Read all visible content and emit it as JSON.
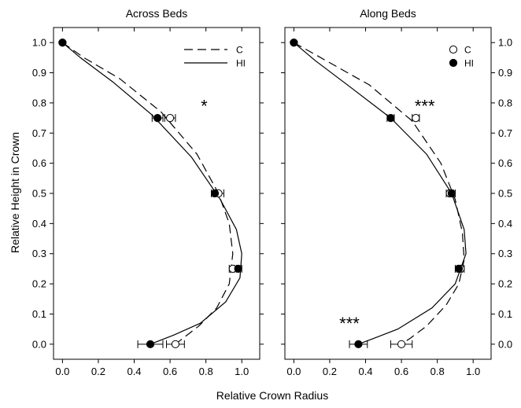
{
  "figure": {
    "ylabel": "Relative Height in Crown",
    "xlabel": "Relative Crown Radius"
  },
  "chart_data": [
    {
      "type": "line",
      "title": "Across Beds",
      "xlabel": "Relative Crown Radius",
      "ylabel": "Relative Height in Crown",
      "xlim": [
        -0.05,
        1.1
      ],
      "ylim": [
        -0.05,
        1.05
      ],
      "x_ticks": [
        "0.0",
        "0.2",
        "0.4",
        "0.6",
        "0.8",
        "1.0"
      ],
      "y_ticks": [
        "0.0",
        "0.1",
        "0.2",
        "0.3",
        "0.4",
        "0.5",
        "0.6",
        "0.7",
        "0.8",
        "0.9",
        "1.0"
      ],
      "legend": {
        "position": "top-right",
        "style": "lines",
        "entries": [
          "C",
          "HI"
        ]
      },
      "series": [
        {
          "name": "C",
          "marker": "open-circle",
          "line": "dashed",
          "points": [
            {
              "x": 0.0,
              "y": 1.0,
              "err": 0.0
            },
            {
              "x": 0.6,
              "y": 0.75,
              "err": 0.03
            },
            {
              "x": 0.87,
              "y": 0.5,
              "err": 0.03
            },
            {
              "x": 0.95,
              "y": 0.25,
              "err": 0.02
            },
            {
              "x": 0.63,
              "y": 0.0,
              "err": 0.05
            }
          ],
          "curve": [
            {
              "x": 0.0,
              "y": 1.0
            },
            {
              "x": 0.12,
              "y": 0.95
            },
            {
              "x": 0.32,
              "y": 0.88
            },
            {
              "x": 0.55,
              "y": 0.77
            },
            {
              "x": 0.75,
              "y": 0.63
            },
            {
              "x": 0.87,
              "y": 0.5
            },
            {
              "x": 0.93,
              "y": 0.4
            },
            {
              "x": 0.95,
              "y": 0.3
            },
            {
              "x": 0.93,
              "y": 0.2
            },
            {
              "x": 0.86,
              "y": 0.12
            },
            {
              "x": 0.76,
              "y": 0.06
            },
            {
              "x": 0.63,
              "y": 0.0
            }
          ]
        },
        {
          "name": "HI",
          "marker": "filled-circle",
          "line": "solid",
          "points": [
            {
              "x": 0.0,
              "y": 1.0,
              "err": 0.0
            },
            {
              "x": 0.53,
              "y": 0.75,
              "err": 0.03
            },
            {
              "x": 0.85,
              "y": 0.5,
              "err": 0.02
            },
            {
              "x": 0.98,
              "y": 0.25,
              "err": 0.02
            },
            {
              "x": 0.49,
              "y": 0.0,
              "err": 0.07
            }
          ],
          "curve": [
            {
              "x": 0.0,
              "y": 1.0
            },
            {
              "x": 0.1,
              "y": 0.95
            },
            {
              "x": 0.28,
              "y": 0.87
            },
            {
              "x": 0.5,
              "y": 0.76
            },
            {
              "x": 0.72,
              "y": 0.62
            },
            {
              "x": 0.88,
              "y": 0.48
            },
            {
              "x": 0.97,
              "y": 0.38
            },
            {
              "x": 1.0,
              "y": 0.3
            },
            {
              "x": 0.99,
              "y": 0.22
            },
            {
              "x": 0.91,
              "y": 0.14
            },
            {
              "x": 0.77,
              "y": 0.07
            },
            {
              "x": 0.62,
              "y": 0.03
            },
            {
              "x": 0.49,
              "y": 0.0
            }
          ]
        }
      ],
      "annotations": [
        {
          "text": "*",
          "x": 0.79,
          "y": 0.79
        }
      ]
    },
    {
      "type": "line",
      "title": "Along Beds",
      "xlabel": "Relative Crown Radius",
      "ylabel": "Relative Height in Crown",
      "xlim": [
        -0.05,
        1.1
      ],
      "ylim": [
        -0.05,
        1.05
      ],
      "x_ticks": [
        "0.0",
        "0.2",
        "0.4",
        "0.6",
        "0.8",
        "1.0"
      ],
      "y_ticks": [
        "0.0",
        "0.1",
        "0.2",
        "0.3",
        "0.4",
        "0.5",
        "0.6",
        "0.7",
        "0.8",
        "0.9",
        "1.0"
      ],
      "legend": {
        "position": "top-right",
        "style": "markers",
        "entries": [
          "C",
          "HI"
        ]
      },
      "series": [
        {
          "name": "C",
          "marker": "open-circle",
          "line": "dashed",
          "points": [
            {
              "x": 0.0,
              "y": 1.0,
              "err": 0.0
            },
            {
              "x": 0.68,
              "y": 0.75,
              "err": 0.02
            },
            {
              "x": 0.87,
              "y": 0.5,
              "err": 0.02
            },
            {
              "x": 0.93,
              "y": 0.25,
              "err": 0.02
            },
            {
              "x": 0.6,
              "y": 0.0,
              "err": 0.06
            }
          ],
          "curve": [
            {
              "x": 0.0,
              "y": 1.0
            },
            {
              "x": 0.18,
              "y": 0.94
            },
            {
              "x": 0.42,
              "y": 0.86
            },
            {
              "x": 0.66,
              "y": 0.74
            },
            {
              "x": 0.82,
              "y": 0.6
            },
            {
              "x": 0.9,
              "y": 0.48
            },
            {
              "x": 0.94,
              "y": 0.37
            },
            {
              "x": 0.95,
              "y": 0.28
            },
            {
              "x": 0.92,
              "y": 0.2
            },
            {
              "x": 0.85,
              "y": 0.13
            },
            {
              "x": 0.74,
              "y": 0.06
            },
            {
              "x": 0.65,
              "y": 0.02
            },
            {
              "x": 0.6,
              "y": 0.0
            }
          ]
        },
        {
          "name": "HI",
          "marker": "filled-circle",
          "line": "solid",
          "points": [
            {
              "x": 0.0,
              "y": 1.0,
              "err": 0.0
            },
            {
              "x": 0.54,
              "y": 0.75,
              "err": 0.02
            },
            {
              "x": 0.88,
              "y": 0.5,
              "err": 0.02
            },
            {
              "x": 0.92,
              "y": 0.25,
              "err": 0.02
            },
            {
              "x": 0.36,
              "y": 0.0,
              "err": 0.05
            }
          ],
          "curve": [
            {
              "x": 0.0,
              "y": 1.0
            },
            {
              "x": 0.12,
              "y": 0.94
            },
            {
              "x": 0.32,
              "y": 0.85
            },
            {
              "x": 0.54,
              "y": 0.75
            },
            {
              "x": 0.74,
              "y": 0.63
            },
            {
              "x": 0.88,
              "y": 0.5
            },
            {
              "x": 0.95,
              "y": 0.38
            },
            {
              "x": 0.96,
              "y": 0.3
            },
            {
              "x": 0.9,
              "y": 0.2
            },
            {
              "x": 0.77,
              "y": 0.12
            },
            {
              "x": 0.58,
              "y": 0.05
            },
            {
              "x": 0.45,
              "y": 0.02
            },
            {
              "x": 0.36,
              "y": 0.0
            }
          ]
        }
      ],
      "annotations": [
        {
          "text": "***",
          "x": 0.73,
          "y": 0.79
        },
        {
          "text": "***",
          "x": 0.31,
          "y": 0.07
        }
      ]
    }
  ]
}
